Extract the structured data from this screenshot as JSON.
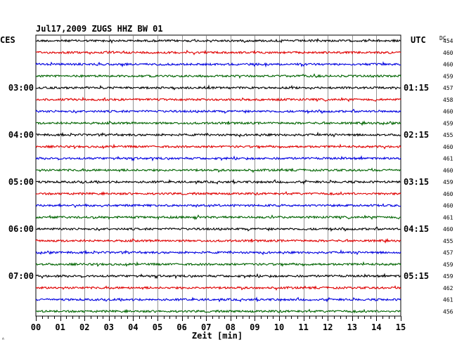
{
  "chart_data": {
    "type": "line",
    "title": "Jul17,2009   ZUGS HHZ BW 01",
    "left_axis_label": "CES",
    "right_axis_label": "UTC",
    "dc_header": "DC",
    "xlabel": "Zeit [min]",
    "xlim": [
      0,
      15
    ],
    "x_ticks": [
      "00",
      "01",
      "02",
      "03",
      "04",
      "05",
      "06",
      "07",
      "08",
      "09",
      "10",
      "11",
      "12",
      "13",
      "14",
      "15"
    ],
    "left_time_labels": [
      {
        "trace": 4,
        "label": "03:00"
      },
      {
        "trace": 8,
        "label": "04:00"
      },
      {
        "trace": 12,
        "label": "05:00"
      },
      {
        "trace": 16,
        "label": "06:00"
      },
      {
        "trace": 20,
        "label": "07:00"
      }
    ],
    "right_time_labels": [
      {
        "trace": 4,
        "label": "01:15"
      },
      {
        "trace": 8,
        "label": "02:15"
      },
      {
        "trace": 12,
        "label": "03:15"
      },
      {
        "trace": 16,
        "label": "04:15"
      },
      {
        "trace": 20,
        "label": "05:15"
      }
    ],
    "trace_colors": [
      "#000000",
      "#e00000",
      "#0000e0",
      "#006400"
    ],
    "dc_values": [
      "454",
      "460",
      "460",
      "459",
      "457",
      "458",
      "460",
      "459",
      "455",
      "460",
      "461",
      "460",
      "459",
      "460",
      "460",
      "461",
      "460",
      "455",
      "457",
      "459",
      "459",
      "462",
      "461",
      "456"
    ],
    "grid": true
  },
  "footer_mark": "ᴬ"
}
